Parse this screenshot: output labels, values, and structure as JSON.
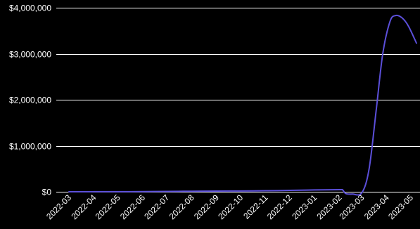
{
  "chart_data": {
    "type": "line",
    "title": "",
    "xlabel": "",
    "ylabel": "",
    "x_tick_labels": [
      "2022-03",
      "2022-04",
      "2022-05",
      "2022-06",
      "2022-07",
      "2022-08",
      "2022-09",
      "2022-10",
      "2022-11",
      "2022-12",
      "2023-01",
      "2023-02",
      "2023-03",
      "2023-04",
      "2023-05"
    ],
    "y_tick_labels": [
      "$0",
      "$1,000,000",
      "$2,000,000",
      "$3,000,000",
      "$4,000,000"
    ],
    "y_ticks": [
      0,
      1000000,
      2000000,
      3000000,
      4000000
    ],
    "ylim": [
      0,
      4000000
    ],
    "grid": "horizontal",
    "legend": "none",
    "series": [
      {
        "color": "#5b4fd9",
        "points": [
          [
            "2022-03",
            0
          ],
          [
            "2022-04",
            1000
          ],
          [
            "2022-05",
            2000
          ],
          [
            "2022-06",
            4000
          ],
          [
            "2022-07",
            8000
          ],
          [
            "2022-08",
            12000
          ],
          [
            "2022-09",
            15000
          ],
          [
            "2022-10",
            18000
          ],
          [
            "2022-11",
            22000
          ],
          [
            "2022-12",
            30000
          ],
          [
            "2023-01",
            40000
          ],
          [
            "2023-02",
            45000
          ],
          [
            "2023-02-05",
            40000
          ],
          [
            "2023-02-09",
            -40000
          ],
          [
            "2023-02-17",
            -50000
          ],
          [
            "2023-03-01",
            -20000
          ],
          [
            "2023-03-10",
            500000
          ],
          [
            "2023-03-19",
            1800000
          ],
          [
            "2023-03-27",
            3000000
          ],
          [
            "2023-04-05",
            3700000
          ],
          [
            "2023-04-12",
            3830000
          ],
          [
            "2023-04-20",
            3780000
          ],
          [
            "2023-04-28",
            3600000
          ],
          [
            "2023-05-08",
            3230000
          ]
        ]
      }
    ],
    "colors": {
      "background": "#000000",
      "grid": "#ffffff",
      "text": "#ffffff",
      "line": "#5b4fd9"
    }
  }
}
